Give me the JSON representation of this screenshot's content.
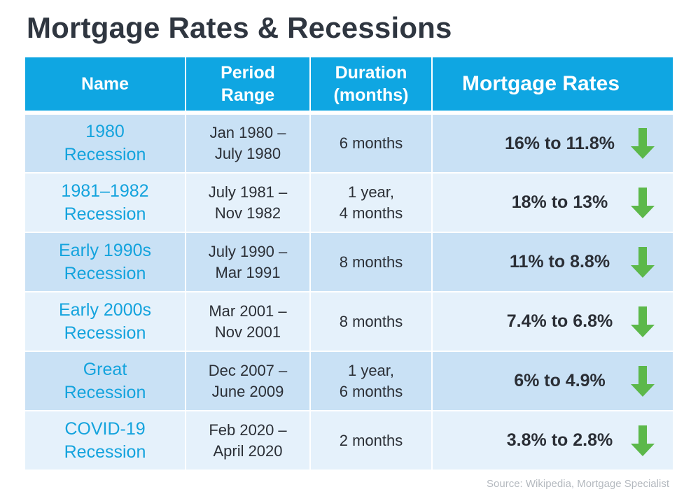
{
  "title": "Mortgage Rates & Recessions",
  "headers": {
    "name": "Name",
    "period": "Period\nRange",
    "duration": "Duration\n(months)",
    "rates": "Mortgage Rates"
  },
  "rows": [
    {
      "name": "1980\nRecession",
      "period": "Jan 1980 –\nJuly 1980",
      "duration": "6 months",
      "rate": "16% to 11.8%",
      "trend": "down"
    },
    {
      "name": "1981–1982\nRecession",
      "period": "July 1981 –\nNov 1982",
      "duration": "1 year,\n4 months",
      "rate": "18% to 13%",
      "trend": "down"
    },
    {
      "name": "Early 1990s\nRecession",
      "period": "July 1990 –\nMar 1991",
      "duration": "8 months",
      "rate": "11% to 8.8%",
      "trend": "down"
    },
    {
      "name": "Early 2000s\nRecession",
      "period": "Mar 2001 –\nNov 2001",
      "duration": "8 months",
      "rate": "7.4% to 6.8%",
      "trend": "down"
    },
    {
      "name": "Great\nRecession",
      "period": "Dec 2007 –\nJune 2009",
      "duration": "1 year,\n6 months",
      "rate": "6% to 4.9%",
      "trend": "down"
    },
    {
      "name": "COVID-19\nRecession",
      "period": "Feb 2020 –\nApril 2020",
      "duration": "2 months",
      "rate": "3.8% to 2.8%",
      "trend": "down"
    }
  ],
  "source": "Source: Wikipedia, Mortgage Specialist",
  "colors": {
    "header_bg": "#0fa6e2",
    "row_dark": "#c9e1f5",
    "row_light": "#e5f1fb",
    "name_text": "#14a3dd",
    "arrow": "#5cb84a"
  },
  "icons": {
    "trend_down": "green-down-arrow-icon"
  }
}
